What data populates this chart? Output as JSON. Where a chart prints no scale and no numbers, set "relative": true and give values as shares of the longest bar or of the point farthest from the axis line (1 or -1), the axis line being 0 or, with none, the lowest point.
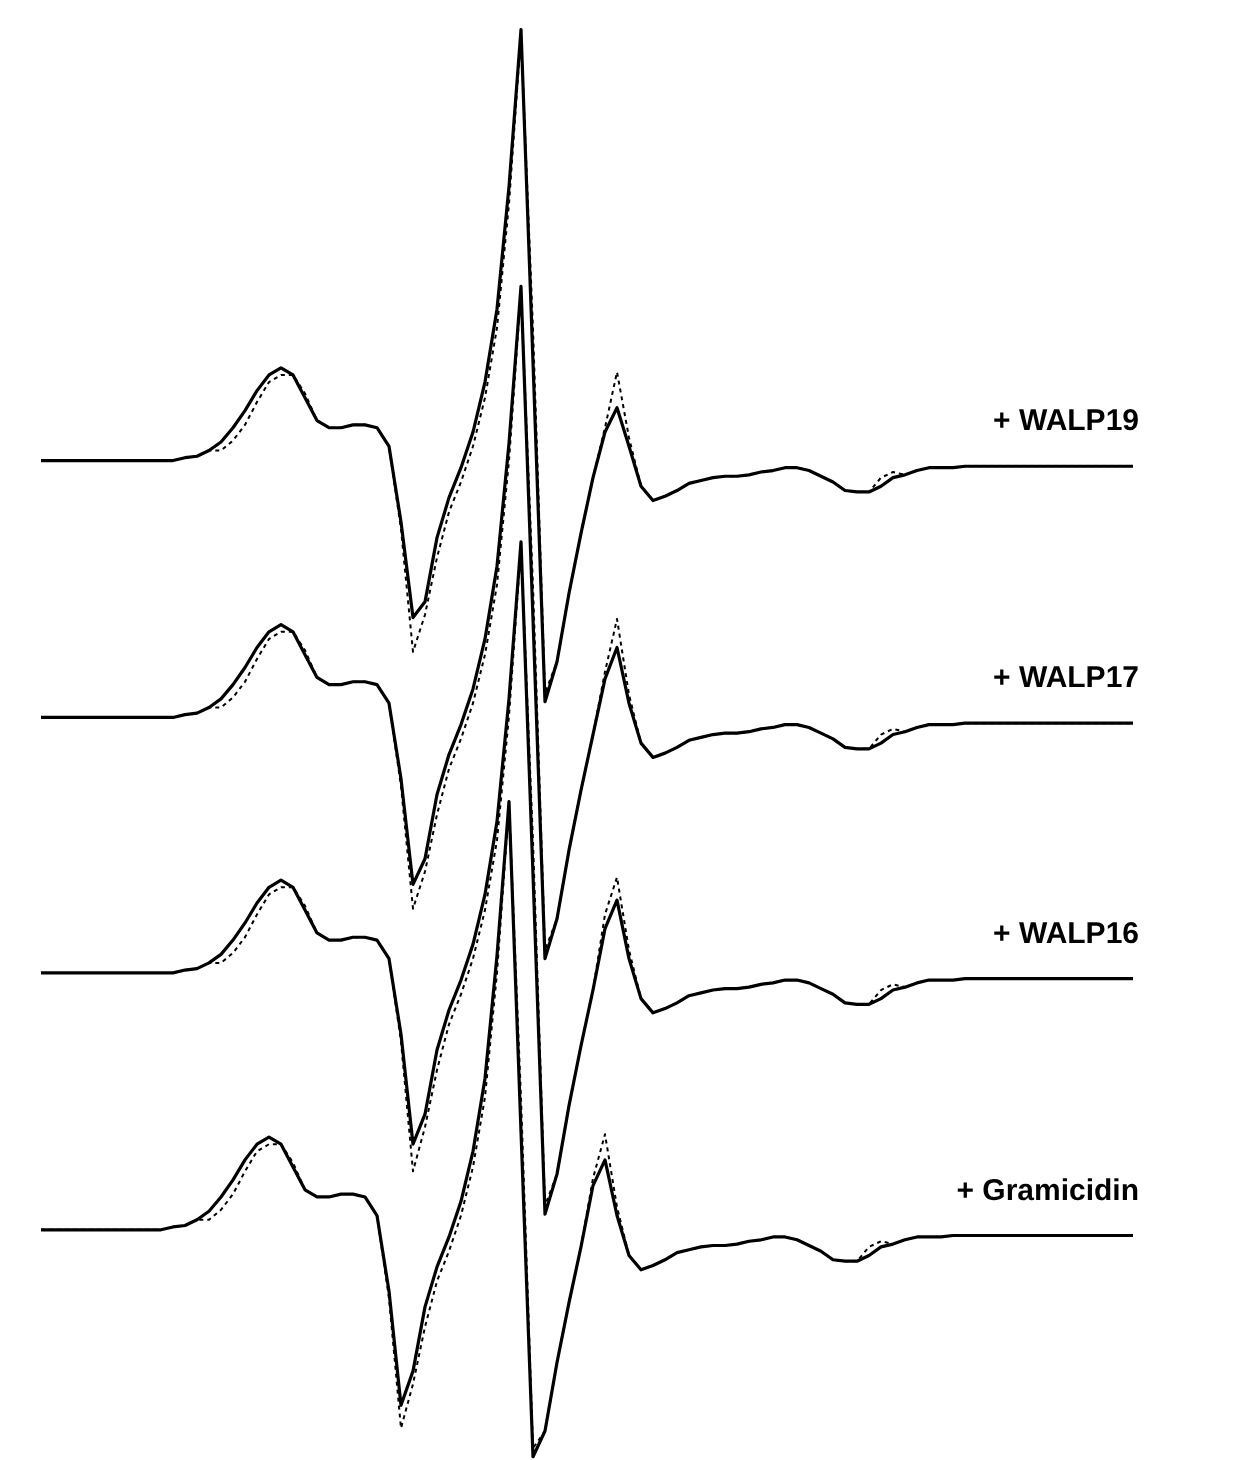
{
  "chart_data": {
    "type": "line",
    "relative": true,
    "categories": [
      null,
      null,
      null,
      null,
      null,
      null,
      null,
      null,
      null,
      null,
      null,
      null,
      null,
      null,
      null,
      null,
      null,
      null,
      null,
      null,
      null,
      null,
      null,
      null,
      null,
      null,
      null,
      null,
      null,
      null,
      null,
      null,
      null,
      null,
      null,
      null,
      null,
      null,
      null,
      null,
      null,
      null,
      null,
      null,
      null,
      null,
      null,
      null,
      null,
      null,
      null,
      null,
      null,
      null,
      null,
      null,
      null,
      null,
      null,
      null,
      null,
      null,
      null,
      null,
      null,
      null,
      null,
      null,
      null,
      null,
      null,
      null,
      null,
      null,
      null,
      null,
      null,
      null,
      null,
      null,
      null,
      null,
      null,
      null,
      null,
      null,
      null,
      null,
      null,
      null,
      null,
      null
    ],
    "series": [
      {
        "name": "+ WALP19",
        "color": "#000000",
        "line_style": "solid",
        "values": [
          0.698,
          0.698,
          0.698,
          0.698,
          0.698,
          0.698,
          0.698,
          0.698,
          0.698,
          0.698,
          0.698,
          0.698,
          0.7,
          0.701,
          0.705,
          0.711,
          0.721,
          0.733,
          0.747,
          0.758,
          0.763,
          0.758,
          0.742,
          0.726,
          0.721,
          0.721,
          0.723,
          0.723,
          0.721,
          0.708,
          0.655,
          0.588,
          0.599,
          0.644,
          0.672,
          0.693,
          0.718,
          0.753,
          0.804,
          0.89,
          1.0,
          0.767,
          0.529,
          0.557,
          0.605,
          0.647,
          0.686,
          0.718,
          0.735,
          0.708,
          0.68,
          0.67,
          0.673,
          0.677,
          0.682,
          0.684,
          0.686,
          0.687,
          0.687,
          0.688,
          0.69,
          0.691,
          0.693,
          0.693,
          0.691,
          0.687,
          0.683,
          0.677,
          0.676,
          0.676,
          0.68,
          0.686,
          0.688,
          0.691,
          0.693,
          0.693,
          0.693,
          0.694,
          0.694,
          0.694,
          0.694,
          0.694,
          0.694,
          0.694,
          0.694,
          0.694,
          0.694,
          0.694,
          0.694,
          0.694,
          0.694,
          0.694
        ]
      },
      {
        "color": "#000000",
        "line_style": "dashed",
        "values": [
          0.698,
          0.698,
          0.698,
          0.698,
          0.698,
          0.698,
          0.698,
          0.698,
          0.698,
          0.698,
          0.698,
          0.698,
          0.7,
          0.701,
          0.705,
          0.705,
          0.712,
          0.723,
          0.739,
          0.753,
          0.758,
          0.758,
          0.745,
          0.726,
          0.721,
          0.721,
          0.723,
          0.723,
          0.721,
          0.708,
          0.65,
          0.564,
          0.59,
          0.63,
          0.662,
          0.683,
          0.708,
          0.742,
          0.791,
          0.878,
          0.997,
          0.79,
          0.535,
          0.557,
          0.605,
          0.647,
          0.686,
          0.721,
          0.76,
          0.714,
          0.68,
          0.67,
          0.673,
          0.677,
          0.682,
          0.684,
          0.686,
          0.687,
          0.687,
          0.688,
          0.69,
          0.691,
          0.693,
          0.693,
          0.691,
          0.687,
          0.683,
          0.677,
          0.676,
          0.676,
          0.686,
          0.69,
          0.688,
          0.691,
          0.693,
          0.693,
          0.693,
          0.694,
          0.694,
          0.694,
          0.694,
          0.694,
          0.694,
          0.694,
          0.694,
          0.694,
          0.694,
          0.694,
          0.694,
          0.694,
          0.694,
          0.694
        ]
      },
      {
        "name": "+ WALP17",
        "color": "#000000",
        "line_style": "solid",
        "values": [
          0.518,
          0.518,
          0.518,
          0.518,
          0.518,
          0.518,
          0.518,
          0.518,
          0.518,
          0.518,
          0.518,
          0.518,
          0.52,
          0.521,
          0.525,
          0.531,
          0.541,
          0.553,
          0.567,
          0.578,
          0.583,
          0.578,
          0.562,
          0.546,
          0.541,
          0.541,
          0.543,
          0.543,
          0.541,
          0.528,
          0.475,
          0.401,
          0.419,
          0.464,
          0.492,
          0.513,
          0.538,
          0.573,
          0.624,
          0.71,
          0.82,
          0.587,
          0.349,
          0.377,
          0.425,
          0.467,
          0.506,
          0.545,
          0.567,
          0.528,
          0.5,
          0.49,
          0.493,
          0.497,
          0.502,
          0.504,
          0.506,
          0.507,
          0.507,
          0.508,
          0.51,
          0.511,
          0.513,
          0.513,
          0.511,
          0.507,
          0.503,
          0.497,
          0.496,
          0.496,
          0.5,
          0.506,
          0.508,
          0.511,
          0.513,
          0.513,
          0.513,
          0.514,
          0.514,
          0.514,
          0.514,
          0.514,
          0.514,
          0.514,
          0.514,
          0.514,
          0.514,
          0.514,
          0.514,
          0.514,
          0.514,
          0.514
        ]
      },
      {
        "color": "#000000",
        "line_style": "dashed",
        "values": [
          0.518,
          0.518,
          0.518,
          0.518,
          0.518,
          0.518,
          0.518,
          0.518,
          0.518,
          0.518,
          0.518,
          0.518,
          0.52,
          0.521,
          0.525,
          0.525,
          0.532,
          0.543,
          0.559,
          0.573,
          0.578,
          0.578,
          0.565,
          0.546,
          0.541,
          0.541,
          0.543,
          0.543,
          0.541,
          0.528,
          0.47,
          0.384,
          0.41,
          0.45,
          0.482,
          0.503,
          0.528,
          0.562,
          0.611,
          0.698,
          0.817,
          0.61,
          0.355,
          0.377,
          0.425,
          0.467,
          0.506,
          0.55,
          0.587,
          0.534,
          0.5,
          0.49,
          0.493,
          0.497,
          0.502,
          0.504,
          0.506,
          0.507,
          0.507,
          0.508,
          0.51,
          0.511,
          0.513,
          0.513,
          0.511,
          0.507,
          0.503,
          0.497,
          0.496,
          0.496,
          0.506,
          0.51,
          0.508,
          0.511,
          0.513,
          0.513,
          0.513,
          0.514,
          0.514,
          0.514,
          0.514,
          0.514,
          0.514,
          0.514,
          0.514,
          0.514,
          0.514,
          0.514,
          0.514,
          0.514,
          0.514,
          0.514
        ]
      },
      {
        "name": "+ WALP16",
        "color": "#000000",
        "line_style": "solid",
        "values": [
          0.339,
          0.339,
          0.339,
          0.339,
          0.339,
          0.339,
          0.339,
          0.339,
          0.339,
          0.339,
          0.339,
          0.339,
          0.341,
          0.342,
          0.346,
          0.352,
          0.362,
          0.374,
          0.388,
          0.399,
          0.404,
          0.399,
          0.383,
          0.367,
          0.362,
          0.362,
          0.364,
          0.364,
          0.362,
          0.349,
          0.296,
          0.219,
          0.24,
          0.285,
          0.313,
          0.334,
          0.359,
          0.394,
          0.445,
          0.531,
          0.641,
          0.408,
          0.17,
          0.198,
          0.246,
          0.288,
          0.327,
          0.37,
          0.39,
          0.349,
          0.321,
          0.311,
          0.314,
          0.318,
          0.323,
          0.325,
          0.327,
          0.328,
          0.328,
          0.329,
          0.331,
          0.332,
          0.334,
          0.334,
          0.332,
          0.328,
          0.324,
          0.318,
          0.317,
          0.317,
          0.321,
          0.327,
          0.329,
          0.332,
          0.334,
          0.334,
          0.334,
          0.335,
          0.335,
          0.335,
          0.335,
          0.335,
          0.335,
          0.335,
          0.335,
          0.335,
          0.335,
          0.335,
          0.335,
          0.335,
          0.335,
          0.335
        ]
      },
      {
        "color": "#000000",
        "line_style": "dashed",
        "values": [
          0.339,
          0.339,
          0.339,
          0.339,
          0.339,
          0.339,
          0.339,
          0.339,
          0.339,
          0.339,
          0.339,
          0.339,
          0.341,
          0.342,
          0.346,
          0.346,
          0.353,
          0.364,
          0.38,
          0.394,
          0.399,
          0.399,
          0.386,
          0.367,
          0.362,
          0.362,
          0.364,
          0.364,
          0.362,
          0.349,
          0.291,
          0.2,
          0.231,
          0.271,
          0.303,
          0.324,
          0.349,
          0.383,
          0.432,
          0.519,
          0.638,
          0.431,
          0.176,
          0.198,
          0.246,
          0.288,
          0.327,
          0.38,
          0.406,
          0.355,
          0.321,
          0.311,
          0.314,
          0.318,
          0.323,
          0.325,
          0.327,
          0.328,
          0.328,
          0.329,
          0.331,
          0.332,
          0.334,
          0.334,
          0.332,
          0.328,
          0.324,
          0.318,
          0.317,
          0.317,
          0.327,
          0.331,
          0.329,
          0.332,
          0.334,
          0.334,
          0.334,
          0.335,
          0.335,
          0.335,
          0.335,
          0.335,
          0.335,
          0.335,
          0.335,
          0.335,
          0.335,
          0.335,
          0.335,
          0.335,
          0.335,
          0.335
        ]
      },
      {
        "name": "+ Gramicidin",
        "color": "#000000",
        "line_style": "solid",
        "values": [
          0.159,
          0.159,
          0.159,
          0.159,
          0.159,
          0.159,
          0.159,
          0.159,
          0.159,
          0.159,
          0.159,
          0.161,
          0.162,
          0.166,
          0.172,
          0.182,
          0.194,
          0.208,
          0.219,
          0.224,
          0.219,
          0.203,
          0.187,
          0.182,
          0.182,
          0.184,
          0.184,
          0.182,
          0.169,
          0.116,
          0.036,
          0.06,
          0.105,
          0.133,
          0.154,
          0.179,
          0.214,
          0.265,
          0.351,
          0.459,
          0.228,
          0.0,
          0.018,
          0.066,
          0.108,
          0.147,
          0.19,
          0.208,
          0.169,
          0.141,
          0.131,
          0.134,
          0.138,
          0.143,
          0.145,
          0.147,
          0.148,
          0.148,
          0.149,
          0.151,
          0.152,
          0.154,
          0.154,
          0.152,
          0.148,
          0.144,
          0.138,
          0.137,
          0.137,
          0.141,
          0.147,
          0.149,
          0.152,
          0.154,
          0.154,
          0.154,
          0.155,
          0.155,
          0.155,
          0.155,
          0.155,
          0.155,
          0.155,
          0.155,
          0.155,
          0.155,
          0.155,
          0.155,
          0.155,
          0.155,
          0.155,
          0.155
        ]
      },
      {
        "color": "#000000",
        "line_style": "dashed",
        "values": [
          0.159,
          0.159,
          0.159,
          0.159,
          0.159,
          0.159,
          0.159,
          0.159,
          0.159,
          0.159,
          0.159,
          0.161,
          0.162,
          0.166,
          0.166,
          0.173,
          0.184,
          0.2,
          0.214,
          0.219,
          0.219,
          0.206,
          0.187,
          0.182,
          0.182,
          0.184,
          0.184,
          0.182,
          0.169,
          0.111,
          0.02,
          0.051,
          0.091,
          0.123,
          0.144,
          0.169,
          0.203,
          0.252,
          0.339,
          0.457,
          0.251,
          0.006,
          0.018,
          0.066,
          0.108,
          0.147,
          0.195,
          0.226,
          0.175,
          0.141,
          0.131,
          0.134,
          0.138,
          0.143,
          0.145,
          0.147,
          0.148,
          0.148,
          0.149,
          0.151,
          0.152,
          0.154,
          0.154,
          0.152,
          0.148,
          0.144,
          0.138,
          0.137,
          0.137,
          0.147,
          0.151,
          0.149,
          0.152,
          0.154,
          0.154,
          0.154,
          0.155,
          0.155,
          0.155,
          0.155,
          0.155,
          0.155,
          0.155,
          0.155,
          0.155,
          0.155,
          0.155,
          0.155,
          0.155,
          0.155,
          0.155,
          0.155
        ]
      }
    ]
  }
}
